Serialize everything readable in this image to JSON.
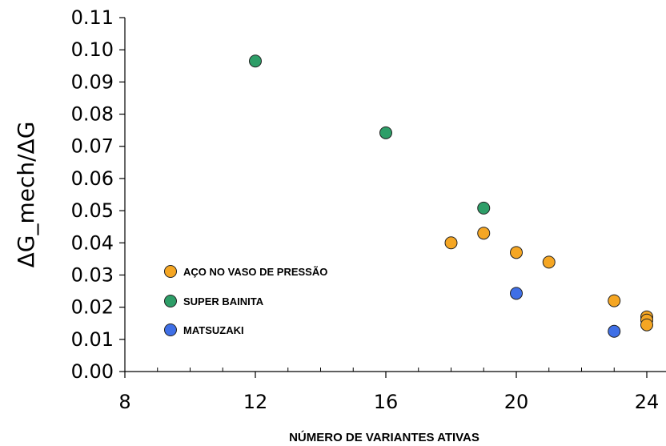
{
  "chart_data": {
    "type": "scatter",
    "title": "",
    "xlabel": "NÚMERO DE VARIANTES ATIVAS",
    "ylabel": "ΔG_mech/ΔG",
    "xlim": [
      8,
      25
    ],
    "ylim": [
      0,
      0.11
    ],
    "x_ticks": [
      "8",
      "12",
      "16",
      "20",
      "24"
    ],
    "y_ticks": [
      "0.00",
      "0.01",
      "0.02",
      "0.03",
      "0.04",
      "0.05",
      "0.06",
      "0.07",
      "0.08",
      "0.09",
      "0.10",
      "0.11"
    ],
    "grid": false,
    "legend_position": "middle-left",
    "series": [
      {
        "name": "AÇO NO VASO DE PRESSÃO",
        "color": "#f5a623",
        "points": [
          {
            "x": 18,
            "y": 0.04
          },
          {
            "x": 19,
            "y": 0.043
          },
          {
            "x": 20,
            "y": 0.037
          },
          {
            "x": 21,
            "y": 0.034
          },
          {
            "x": 23,
            "y": 0.022
          },
          {
            "x": 24,
            "y": 0.017
          },
          {
            "x": 24,
            "y": 0.016
          },
          {
            "x": 24,
            "y": 0.0145
          }
        ]
      },
      {
        "name": "SUPER BAINITA",
        "color": "#2e9e68",
        "points": [
          {
            "x": 12,
            "y": 0.0965
          },
          {
            "x": 16,
            "y": 0.0742
          },
          {
            "x": 19,
            "y": 0.0508
          }
        ]
      },
      {
        "name": "MATSUZAKI",
        "color": "#3f6fe6",
        "points": [
          {
            "x": 20,
            "y": 0.0243
          },
          {
            "x": 23,
            "y": 0.0125
          }
        ]
      }
    ]
  }
}
